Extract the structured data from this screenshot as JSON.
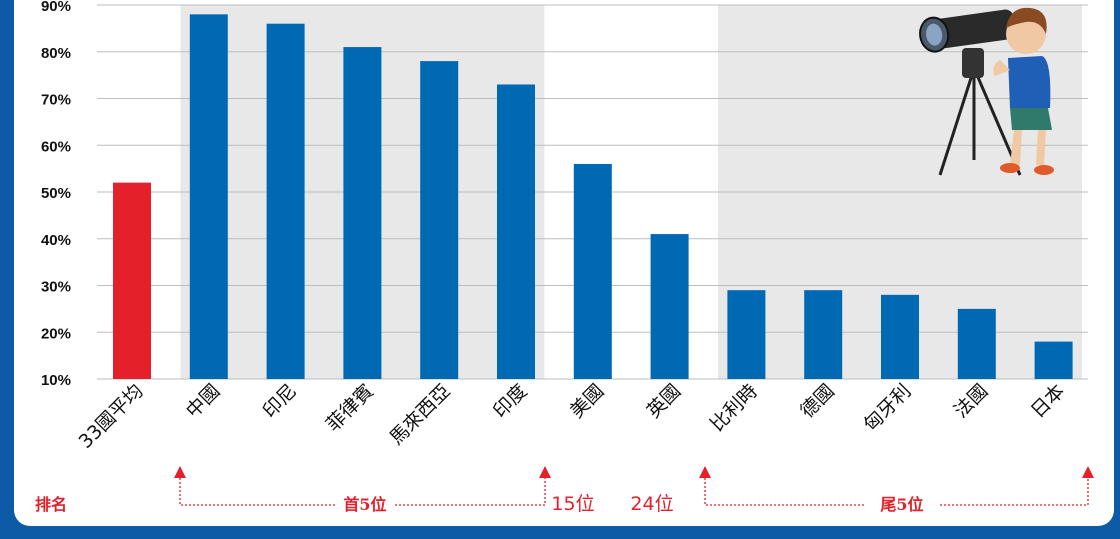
{
  "chart_data": {
    "type": "bar",
    "categories": [
      "33國平均",
      "中國",
      "印尼",
      "菲律賓",
      "馬來西亞",
      "印度",
      "美國",
      "英國",
      "比利時",
      "德國",
      "匈牙利",
      "法國",
      "日本"
    ],
    "values": [
      52,
      88,
      86,
      81,
      78,
      73,
      56,
      41,
      29,
      29,
      28,
      25,
      18
    ],
    "highlight_index": 0,
    "colors": {
      "bar": "#0069b4",
      "highlight": "#e4202a",
      "band": "#e8e8e8",
      "grid": "#bdbdbd",
      "rank": "#e4202a"
    },
    "ylim": [
      10,
      90
    ],
    "yticks": [
      "10%",
      "20%",
      "30%",
      "40%",
      "50%",
      "60%",
      "70%",
      "80%",
      "90%"
    ],
    "grid": true
  },
  "ranking": {
    "label": "排名",
    "top5": "首5位",
    "rank15": "15位",
    "rank24": "24位",
    "bottom5": "尾5位"
  },
  "illustration": {
    "name": "boy-with-telescope-icon"
  }
}
